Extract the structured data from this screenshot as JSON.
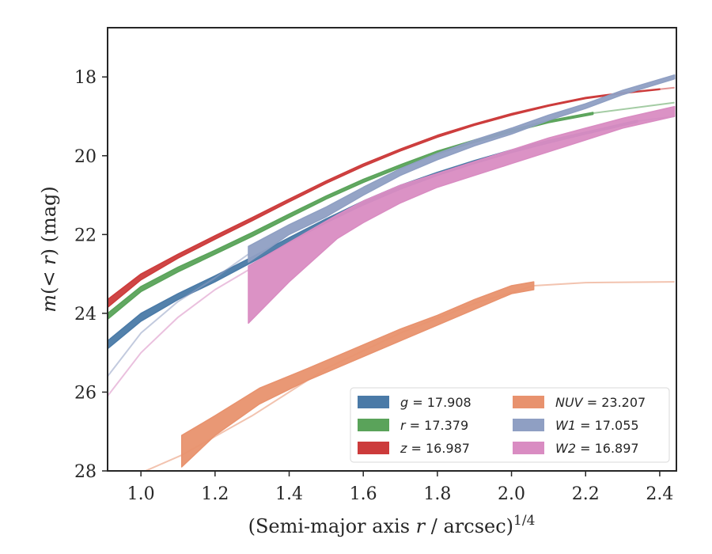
{
  "chart_data": {
    "type": "line",
    "xlabel": "(Semi-major axis r / arcsec)^{1/4}",
    "ylabel": "m(< r) (mag)",
    "xlim": [
      0.91,
      2.445
    ],
    "ylim": [
      28.0,
      16.75
    ],
    "y_inverted": true,
    "x_ticks": [
      "1.0",
      "1.2",
      "1.4",
      "1.6",
      "1.8",
      "2.0",
      "2.2",
      "2.4"
    ],
    "y_ticks": [
      "18",
      "20",
      "22",
      "24",
      "26",
      "28"
    ],
    "legend_position": "lower-right",
    "legend_ncol": 2,
    "series": [
      {
        "name": "g = 17.908",
        "color": "#4a7aa7",
        "band_x": [
          0.91,
          1.0,
          1.1,
          1.2,
          1.3,
          1.4,
          1.5,
          1.6,
          1.7,
          1.8,
          1.9,
          2.0,
          2.1,
          2.2,
          2.34
        ],
        "band_lo": [
          24.9,
          24.2,
          23.65,
          23.2,
          22.7,
          22.2,
          21.7,
          21.25,
          20.85,
          20.5,
          20.2,
          19.92,
          19.68,
          19.45,
          19.15
        ],
        "band_hi": [
          24.7,
          24.0,
          23.5,
          23.05,
          22.57,
          22.08,
          21.6,
          21.15,
          20.75,
          20.42,
          20.12,
          19.85,
          19.61,
          19.4,
          19.1
        ],
        "ext_x": [
          2.34,
          2.44
        ],
        "ext_y": [
          19.12,
          19.0
        ]
      },
      {
        "name": "r = 17.379",
        "color": "#5aa35a",
        "band_x": [
          0.91,
          1.0,
          1.1,
          1.2,
          1.3,
          1.4,
          1.5,
          1.6,
          1.7,
          1.8,
          1.9,
          2.0,
          2.1,
          2.22
        ],
        "band_lo": [
          24.15,
          23.45,
          22.95,
          22.5,
          22.05,
          21.57,
          21.1,
          20.68,
          20.3,
          19.95,
          19.66,
          19.4,
          19.16,
          18.95
        ],
        "band_hi": [
          24.0,
          23.32,
          22.83,
          22.4,
          21.95,
          21.48,
          21.02,
          20.6,
          20.23,
          19.88,
          19.6,
          19.34,
          19.11,
          18.9
        ],
        "ext_x": [
          2.22,
          2.44
        ],
        "ext_y": [
          18.92,
          18.65
        ]
      },
      {
        "name": "z = 16.987",
        "color": "#cc3b3b",
        "band_x": [
          0.91,
          1.0,
          1.1,
          1.2,
          1.3,
          1.4,
          1.5,
          1.6,
          1.7,
          1.8,
          1.9,
          2.0,
          2.1,
          2.2,
          2.3,
          2.4
        ],
        "band_lo": [
          23.85,
          23.15,
          22.6,
          22.12,
          21.65,
          21.17,
          20.7,
          20.27,
          19.88,
          19.53,
          19.23,
          18.97,
          18.74,
          18.55,
          18.42,
          18.32
        ],
        "band_hi": [
          23.65,
          23.0,
          22.5,
          22.03,
          21.57,
          21.1,
          20.64,
          20.21,
          19.83,
          19.48,
          19.19,
          18.93,
          18.71,
          18.52,
          18.4,
          18.3
        ],
        "ext_x": [
          2.4,
          2.44
        ],
        "ext_y": [
          18.31,
          18.27
        ]
      },
      {
        "name": "NUV = 23.207",
        "color": "#e8926e",
        "band_x": [
          1.11,
          1.2,
          1.32,
          1.45,
          1.55,
          1.7,
          1.8,
          1.9,
          2.0,
          2.06
        ],
        "band_lo": [
          27.9,
          27.1,
          26.3,
          25.7,
          25.3,
          24.7,
          24.3,
          23.9,
          23.5,
          23.4
        ],
        "band_hi": [
          27.1,
          26.6,
          25.9,
          25.4,
          25.0,
          24.4,
          24.05,
          23.65,
          23.3,
          23.2
        ],
        "ext_x": [
          1.0,
          1.11,
          1.3,
          1.5,
          1.7,
          1.9,
          2.06,
          2.2,
          2.44
        ],
        "ext_y": [
          28.05,
          27.6,
          26.6,
          25.4,
          24.5,
          23.75,
          23.3,
          23.22,
          23.2
        ]
      },
      {
        "name": "W1 = 17.055",
        "color": "#8f9fc3",
        "band_x": [
          1.29,
          1.4,
          1.5,
          1.6,
          1.7,
          1.8,
          1.9,
          2.0,
          2.1,
          2.2,
          2.3,
          2.44
        ],
        "band_lo": [
          22.7,
          22.0,
          21.55,
          21.0,
          20.5,
          20.1,
          19.75,
          19.45,
          19.1,
          18.8,
          18.45,
          18.05
        ],
        "band_hi": [
          22.3,
          21.75,
          21.3,
          20.8,
          20.33,
          19.94,
          19.6,
          19.3,
          18.97,
          18.68,
          18.34,
          17.95
        ],
        "ext_x": [
          0.91,
          1.0,
          1.1,
          1.2,
          1.29
        ],
        "ext_y": [
          25.6,
          24.5,
          23.7,
          23.1,
          22.5
        ]
      },
      {
        "name": "W2 = 16.897",
        "color": "#d98cc2",
        "band_x": [
          1.29,
          1.4,
          1.53,
          1.6,
          1.7,
          1.8,
          1.9,
          2.0,
          2.1,
          2.2,
          2.3,
          2.44
        ],
        "band_lo": [
          24.25,
          23.2,
          22.1,
          21.7,
          21.2,
          20.8,
          20.5,
          20.2,
          19.9,
          19.6,
          19.3,
          19.0
        ],
        "band_hi": [
          22.8,
          22.2,
          21.5,
          21.15,
          20.75,
          20.45,
          20.15,
          19.85,
          19.55,
          19.3,
          19.05,
          18.75
        ],
        "ext_x": [
          0.91,
          1.0,
          1.1,
          1.2,
          1.29
        ],
        "ext_y": [
          26.1,
          25.0,
          24.1,
          23.4,
          22.9
        ]
      }
    ]
  }
}
